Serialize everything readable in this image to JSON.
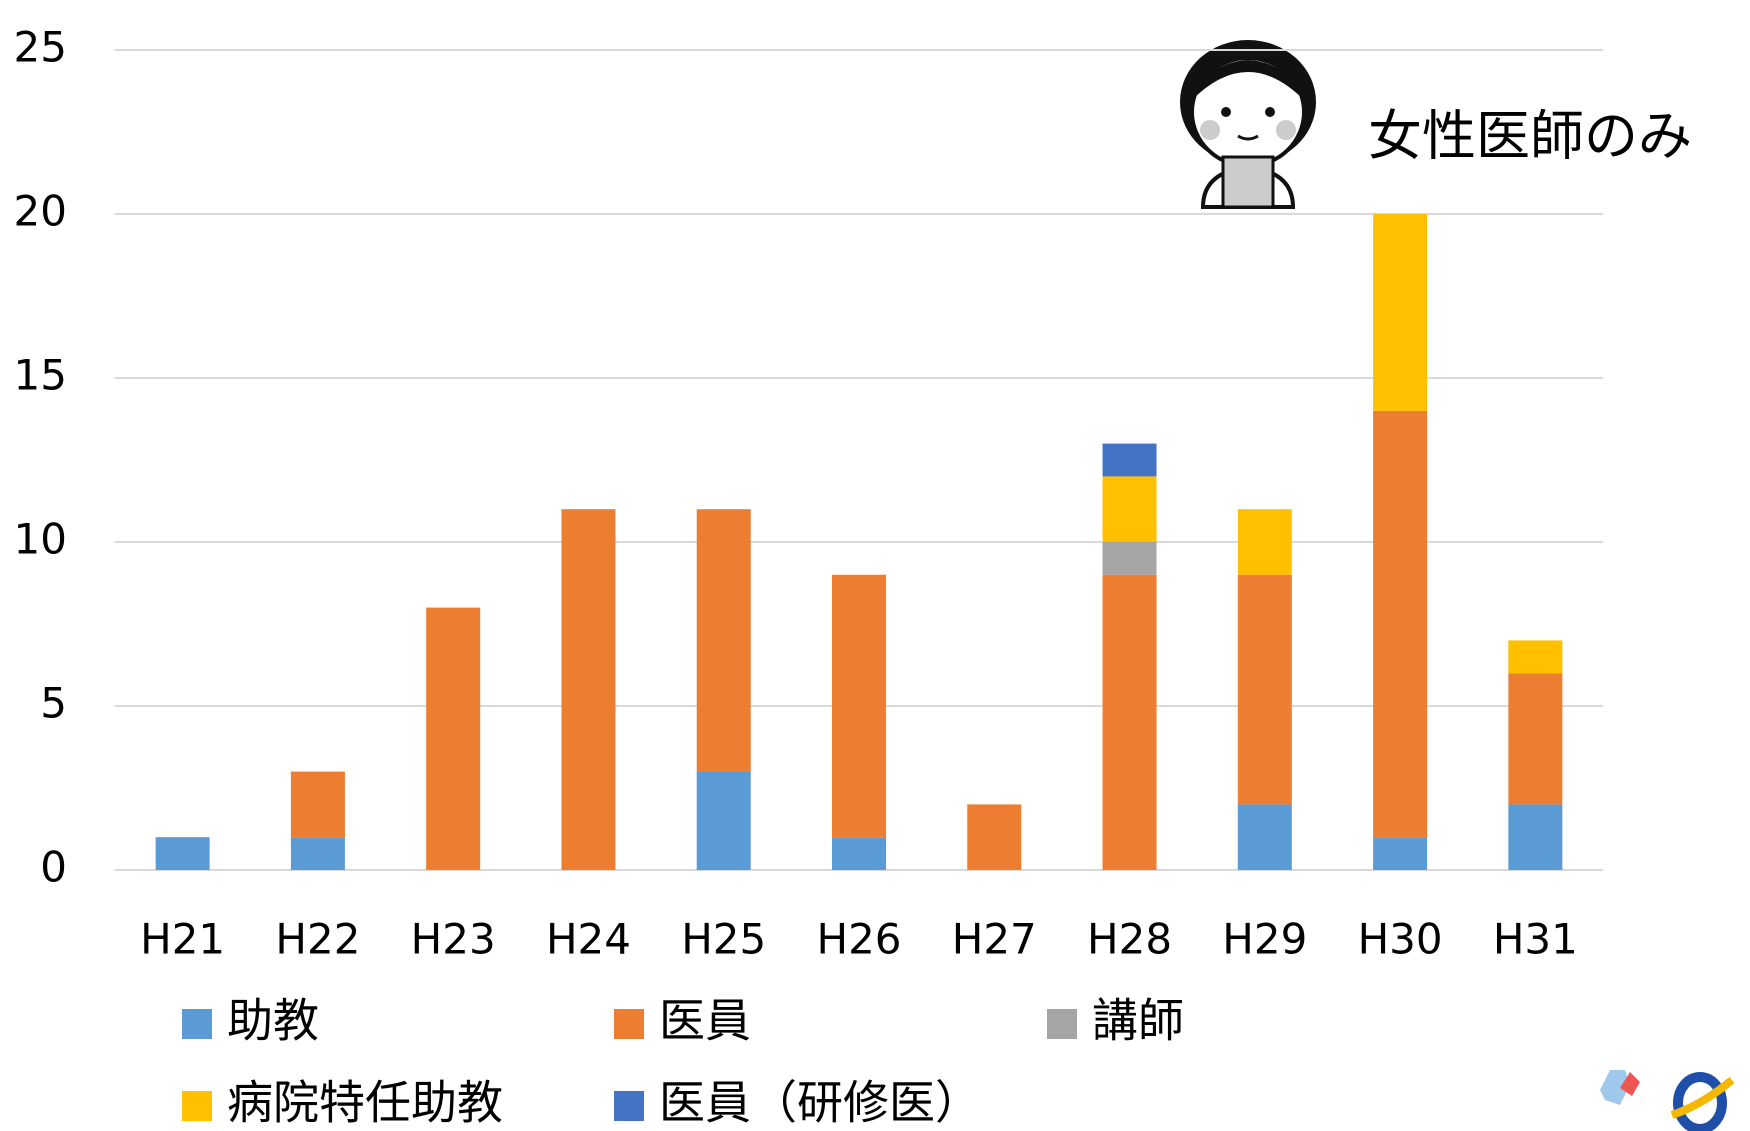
{
  "chart_data": {
    "type": "stacked_bar",
    "annotation": "女性医師のみ",
    "categories": [
      "H21",
      "H22",
      "H23",
      "H24",
      "H25",
      "H26",
      "H27",
      "H28",
      "H29",
      "H30",
      "H31"
    ],
    "series": [
      {
        "name": "助教",
        "color": "#5b9bd5",
        "values": [
          1,
          1,
          0,
          0,
          3,
          1,
          0,
          0,
          2,
          1,
          2
        ]
      },
      {
        "name": "医員",
        "color": "#ed7d31",
        "values": [
          0,
          2,
          8,
          11,
          8,
          8,
          2,
          9,
          7,
          13,
          4
        ]
      },
      {
        "name": "講師",
        "color": "#a5a5a5",
        "values": [
          0,
          0,
          0,
          0,
          0,
          0,
          0,
          1,
          0,
          0,
          0
        ]
      },
      {
        "name": "病院特任助教",
        "color": "#ffc000",
        "values": [
          0,
          0,
          0,
          0,
          0,
          0,
          0,
          2,
          2,
          6,
          1
        ]
      },
      {
        "name": "医員（研修医）",
        "color": "#4472c4",
        "values": [
          0,
          0,
          0,
          0,
          0,
          0,
          0,
          1,
          0,
          0,
          0
        ]
      }
    ],
    "ylim": [
      0,
      25
    ],
    "yticks": [
      0,
      5,
      10,
      15,
      20,
      25
    ],
    "grid": true,
    "legend": "bottom"
  }
}
